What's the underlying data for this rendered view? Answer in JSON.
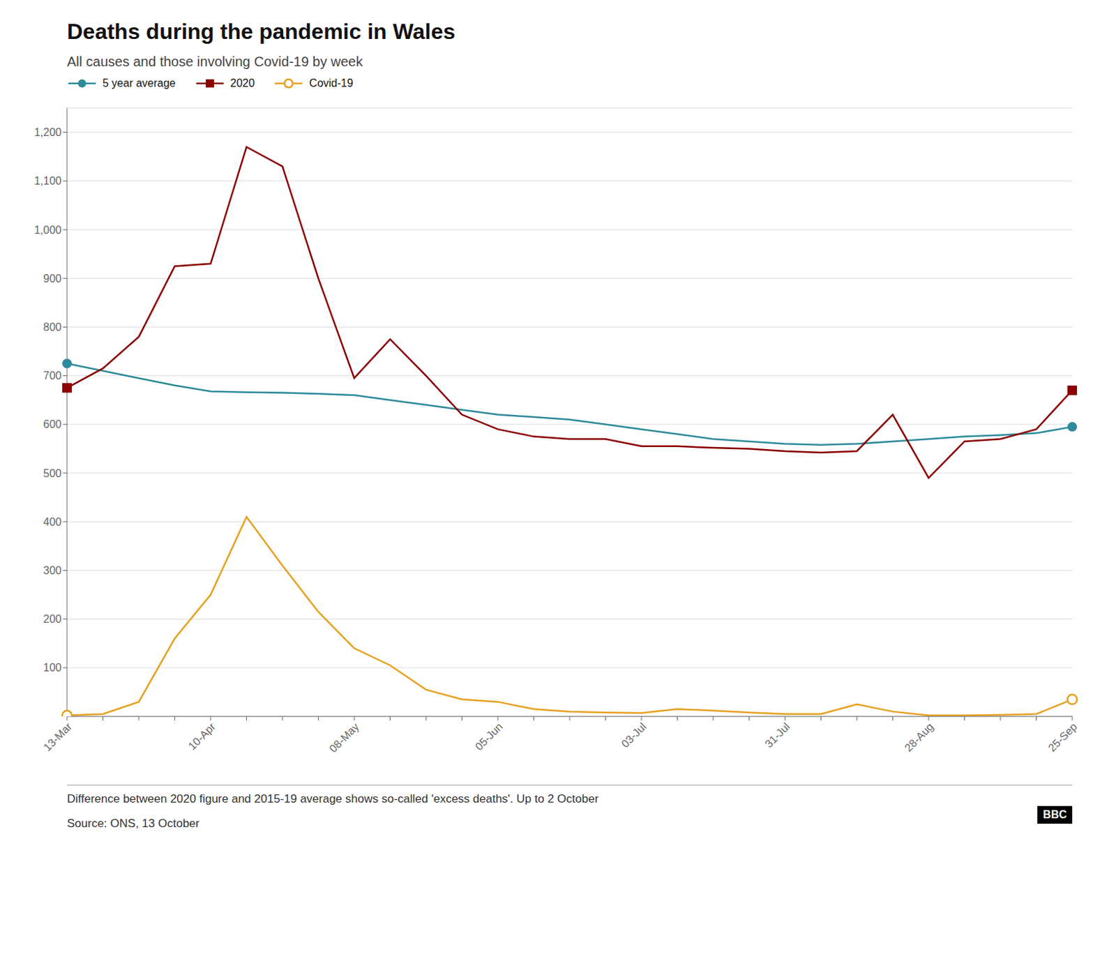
{
  "chart_data": {
    "type": "line",
    "title": "Deaths during the pandemic in Wales",
    "subtitle": "All causes and those involving Covid-19 by week",
    "annotations": [
      "Difference between 2020 figure and 2015-19 average shows so-called 'excess deaths'. Up to 2 October",
      "Source: ONS, 13 October",
      "BBC"
    ],
    "categories": [
      "13-Mar",
      null,
      null,
      null,
      "10-Apr",
      null,
      null,
      null,
      "08-May",
      null,
      null,
      null,
      "05-Jun",
      null,
      null,
      null,
      "03-Jul",
      null,
      null,
      null,
      "31-Jul",
      null,
      null,
      null,
      "28-Aug",
      null,
      null,
      null,
      "25-Sep"
    ],
    "series": [
      {
        "name": "5 year average",
        "color": "#2e8b9a",
        "marker": "circle",
        "values": [
          725,
          710,
          695,
          680,
          668,
          666,
          665,
          663,
          660,
          650,
          640,
          630,
          620,
          615,
          610,
          600,
          590,
          580,
          570,
          565,
          560,
          558,
          560,
          565,
          570,
          575,
          578,
          582,
          595
        ]
      },
      {
        "name": "2020",
        "color": "#8b0000",
        "marker": "square",
        "values": [
          675,
          715,
          780,
          925,
          930,
          1170,
          1130,
          900,
          695,
          775,
          700,
          620,
          590,
          575,
          570,
          570,
          555,
          555,
          552,
          550,
          545,
          542,
          545,
          620,
          490,
          565,
          570,
          590,
          670
        ]
      },
      {
        "name": "Covid-19",
        "color": "#e8a020",
        "marker": "hollow",
        "values": [
          2,
          5,
          30,
          160,
          250,
          410,
          310,
          215,
          140,
          105,
          55,
          35,
          30,
          15,
          10,
          8,
          7,
          15,
          12,
          8,
          5,
          5,
          25,
          10,
          2,
          2,
          3,
          5,
          35
        ]
      }
    ],
    "ylim": [
      0,
      1250
    ],
    "yticks": [
      100,
      200,
      300,
      400,
      500,
      600,
      700,
      800,
      900,
      {
        "value": 1000,
        "label": "1,000"
      },
      {
        "value": 1100,
        "label": "1,100"
      },
      {
        "value": 1200,
        "label": "1,200"
      }
    ],
    "grid": true,
    "legend": "top"
  }
}
